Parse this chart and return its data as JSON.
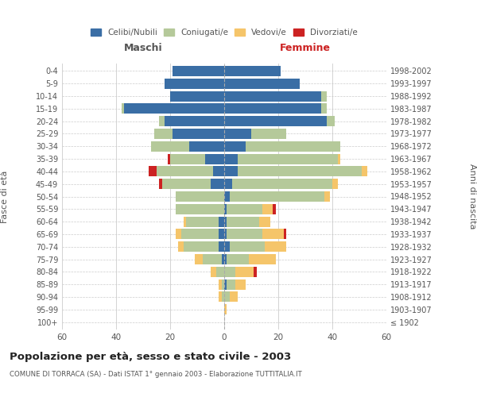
{
  "age_groups": [
    "100+",
    "95-99",
    "90-94",
    "85-89",
    "80-84",
    "75-79",
    "70-74",
    "65-69",
    "60-64",
    "55-59",
    "50-54",
    "45-49",
    "40-44",
    "35-39",
    "30-34",
    "25-29",
    "20-24",
    "15-19",
    "10-14",
    "5-9",
    "0-4"
  ],
  "birth_years": [
    "≤ 1902",
    "1903-1907",
    "1908-1912",
    "1913-1917",
    "1918-1922",
    "1923-1927",
    "1928-1932",
    "1933-1937",
    "1938-1942",
    "1943-1947",
    "1948-1952",
    "1953-1957",
    "1958-1962",
    "1963-1967",
    "1968-1972",
    "1973-1977",
    "1978-1982",
    "1983-1987",
    "1988-1992",
    "1993-1997",
    "1998-2002"
  ],
  "males": {
    "celibi": [
      0,
      0,
      0,
      0,
      0,
      1,
      2,
      2,
      2,
      0,
      0,
      5,
      4,
      7,
      13,
      19,
      22,
      37,
      20,
      22,
      19
    ],
    "coniugati": [
      0,
      0,
      1,
      1,
      3,
      7,
      13,
      14,
      12,
      18,
      18,
      18,
      21,
      13,
      14,
      7,
      2,
      1,
      0,
      0,
      0
    ],
    "vedovi": [
      0,
      0,
      1,
      1,
      2,
      3,
      2,
      2,
      1,
      0,
      0,
      0,
      0,
      0,
      0,
      0,
      0,
      0,
      0,
      0,
      0
    ],
    "divorziati": [
      0,
      0,
      0,
      0,
      0,
      0,
      0,
      0,
      0,
      0,
      0,
      1,
      3,
      1,
      0,
      0,
      0,
      0,
      0,
      0,
      0
    ]
  },
  "females": {
    "nubili": [
      0,
      0,
      0,
      1,
      0,
      1,
      2,
      1,
      1,
      1,
      2,
      3,
      5,
      5,
      8,
      10,
      38,
      36,
      36,
      28,
      21
    ],
    "coniugate": [
      0,
      0,
      2,
      3,
      4,
      8,
      13,
      13,
      12,
      13,
      35,
      37,
      46,
      37,
      35,
      13,
      3,
      2,
      2,
      0,
      0
    ],
    "vedove": [
      0,
      1,
      3,
      4,
      7,
      10,
      8,
      8,
      4,
      4,
      2,
      2,
      2,
      1,
      0,
      0,
      0,
      0,
      0,
      0,
      0
    ],
    "divorziate": [
      0,
      0,
      0,
      0,
      1,
      0,
      0,
      1,
      0,
      1,
      0,
      0,
      0,
      0,
      0,
      0,
      0,
      0,
      0,
      0,
      0
    ]
  },
  "color_celibi": "#3a6ea5",
  "color_coniugati": "#b5c99a",
  "color_vedovi": "#f5c56a",
  "color_divorziati": "#cc2222",
  "title": "Popolazione per età, sesso e stato civile - 2003",
  "subtitle": "COMUNE DI TORRACA (SA) - Dati ISTAT 1° gennaio 2003 - Elaborazione TUTTITALIA.IT",
  "xlabel_left": "Maschi",
  "xlabel_right": "Femmine",
  "ylabel_left": "Fasce di età",
  "ylabel_right": "Anni di nascita",
  "xlim": 60,
  "bg_color": "#ffffff",
  "grid_color": "#cccccc"
}
